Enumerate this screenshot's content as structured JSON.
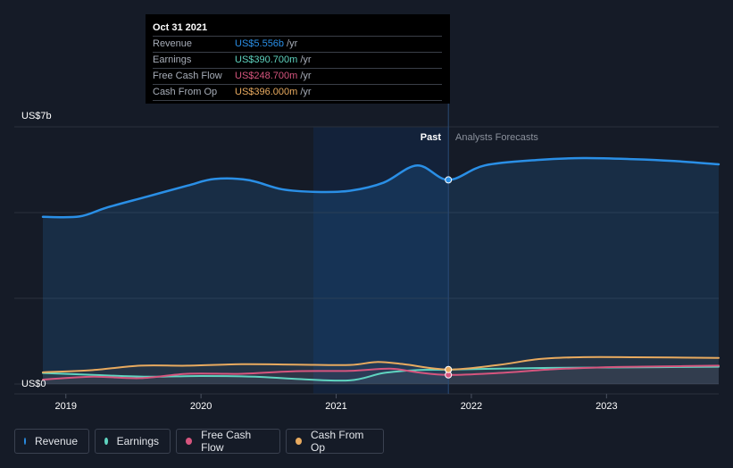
{
  "chart_data": {
    "type": "line",
    "y_axis": {
      "top_label": "US$7b",
      "bottom_label": "US$0",
      "ylim": [
        0,
        7
      ]
    },
    "x_axis": {
      "tick_labels": [
        "2019",
        "2020",
        "2021",
        "2022",
        "2023"
      ],
      "xlim": [
        2018.83,
        2023.83
      ]
    },
    "divider": {
      "past_label": "Past",
      "forecast_label": "Analysts Forecasts",
      "x": 2021.83
    },
    "series": [
      {
        "name": "Revenue",
        "color": "#2a8fe6",
        "x": [
          2018.83,
          2019.1,
          2019.3,
          2019.6,
          2019.9,
          2020.1,
          2020.35,
          2020.6,
          2020.85,
          2021.1,
          2021.35,
          2021.6,
          2021.83,
          2022.1,
          2022.5,
          2022.83,
          2023.2,
          2023.5,
          2023.83
        ],
        "y": [
          4.55,
          4.56,
          4.8,
          5.1,
          5.4,
          5.58,
          5.55,
          5.3,
          5.23,
          5.26,
          5.48,
          5.95,
          5.556,
          5.95,
          6.1,
          6.15,
          6.12,
          6.07,
          5.98
        ]
      },
      {
        "name": "Earnings",
        "color": "#5fd4c0",
        "x": [
          2018.83,
          2019.2,
          2019.6,
          2020.0,
          2020.4,
          2020.7,
          2021.1,
          2021.35,
          2021.6,
          2021.83,
          2022.2,
          2022.6,
          2023.0,
          2023.4,
          2023.83
        ],
        "y": [
          0.3,
          0.25,
          0.2,
          0.22,
          0.2,
          0.14,
          0.1,
          0.3,
          0.38,
          0.3907,
          0.42,
          0.44,
          0.45,
          0.46,
          0.47
        ]
      },
      {
        "name": "Free Cash Flow",
        "color": "#d6557e",
        "x": [
          2018.83,
          2019.2,
          2019.55,
          2019.9,
          2020.3,
          2020.7,
          2021.1,
          2021.4,
          2021.6,
          2021.83,
          2022.2,
          2022.6,
          2023.0,
          2023.4,
          2023.83
        ],
        "y": [
          0.12,
          0.2,
          0.16,
          0.28,
          0.28,
          0.35,
          0.36,
          0.42,
          0.32,
          0.2487,
          0.3,
          0.4,
          0.46,
          0.48,
          0.5
        ]
      },
      {
        "name": "Cash From Op",
        "color": "#e8aa5f",
        "x": [
          2018.83,
          2019.2,
          2019.55,
          2019.9,
          2020.3,
          2020.7,
          2021.1,
          2021.3,
          2021.5,
          2021.83,
          2022.2,
          2022.5,
          2022.8,
          2023.2,
          2023.83
        ],
        "y": [
          0.32,
          0.38,
          0.5,
          0.5,
          0.54,
          0.53,
          0.52,
          0.6,
          0.54,
          0.396,
          0.52,
          0.68,
          0.73,
          0.73,
          0.71
        ]
      }
    ]
  },
  "tooltip": {
    "date": "Oct 31 2021",
    "rows": [
      {
        "label": "Revenue",
        "value": "US$5.556b",
        "unit": "/yr",
        "color": "#2a8fe6"
      },
      {
        "label": "Earnings",
        "value": "US$390.700m",
        "unit": "/yr",
        "color": "#5fd4c0"
      },
      {
        "label": "Free Cash Flow",
        "value": "US$248.700m",
        "unit": "/yr",
        "color": "#d6557e"
      },
      {
        "label": "Cash From Op",
        "value": "US$396.000m",
        "unit": "/yr",
        "color": "#e8aa5f"
      }
    ]
  },
  "legend": [
    {
      "label": "Revenue",
      "color": "#2a8fe6"
    },
    {
      "label": "Earnings",
      "color": "#5fd4c0"
    },
    {
      "label": "Free Cash Flow",
      "color": "#d6557e"
    },
    {
      "label": "Cash From Op",
      "color": "#e8aa5f"
    }
  ]
}
